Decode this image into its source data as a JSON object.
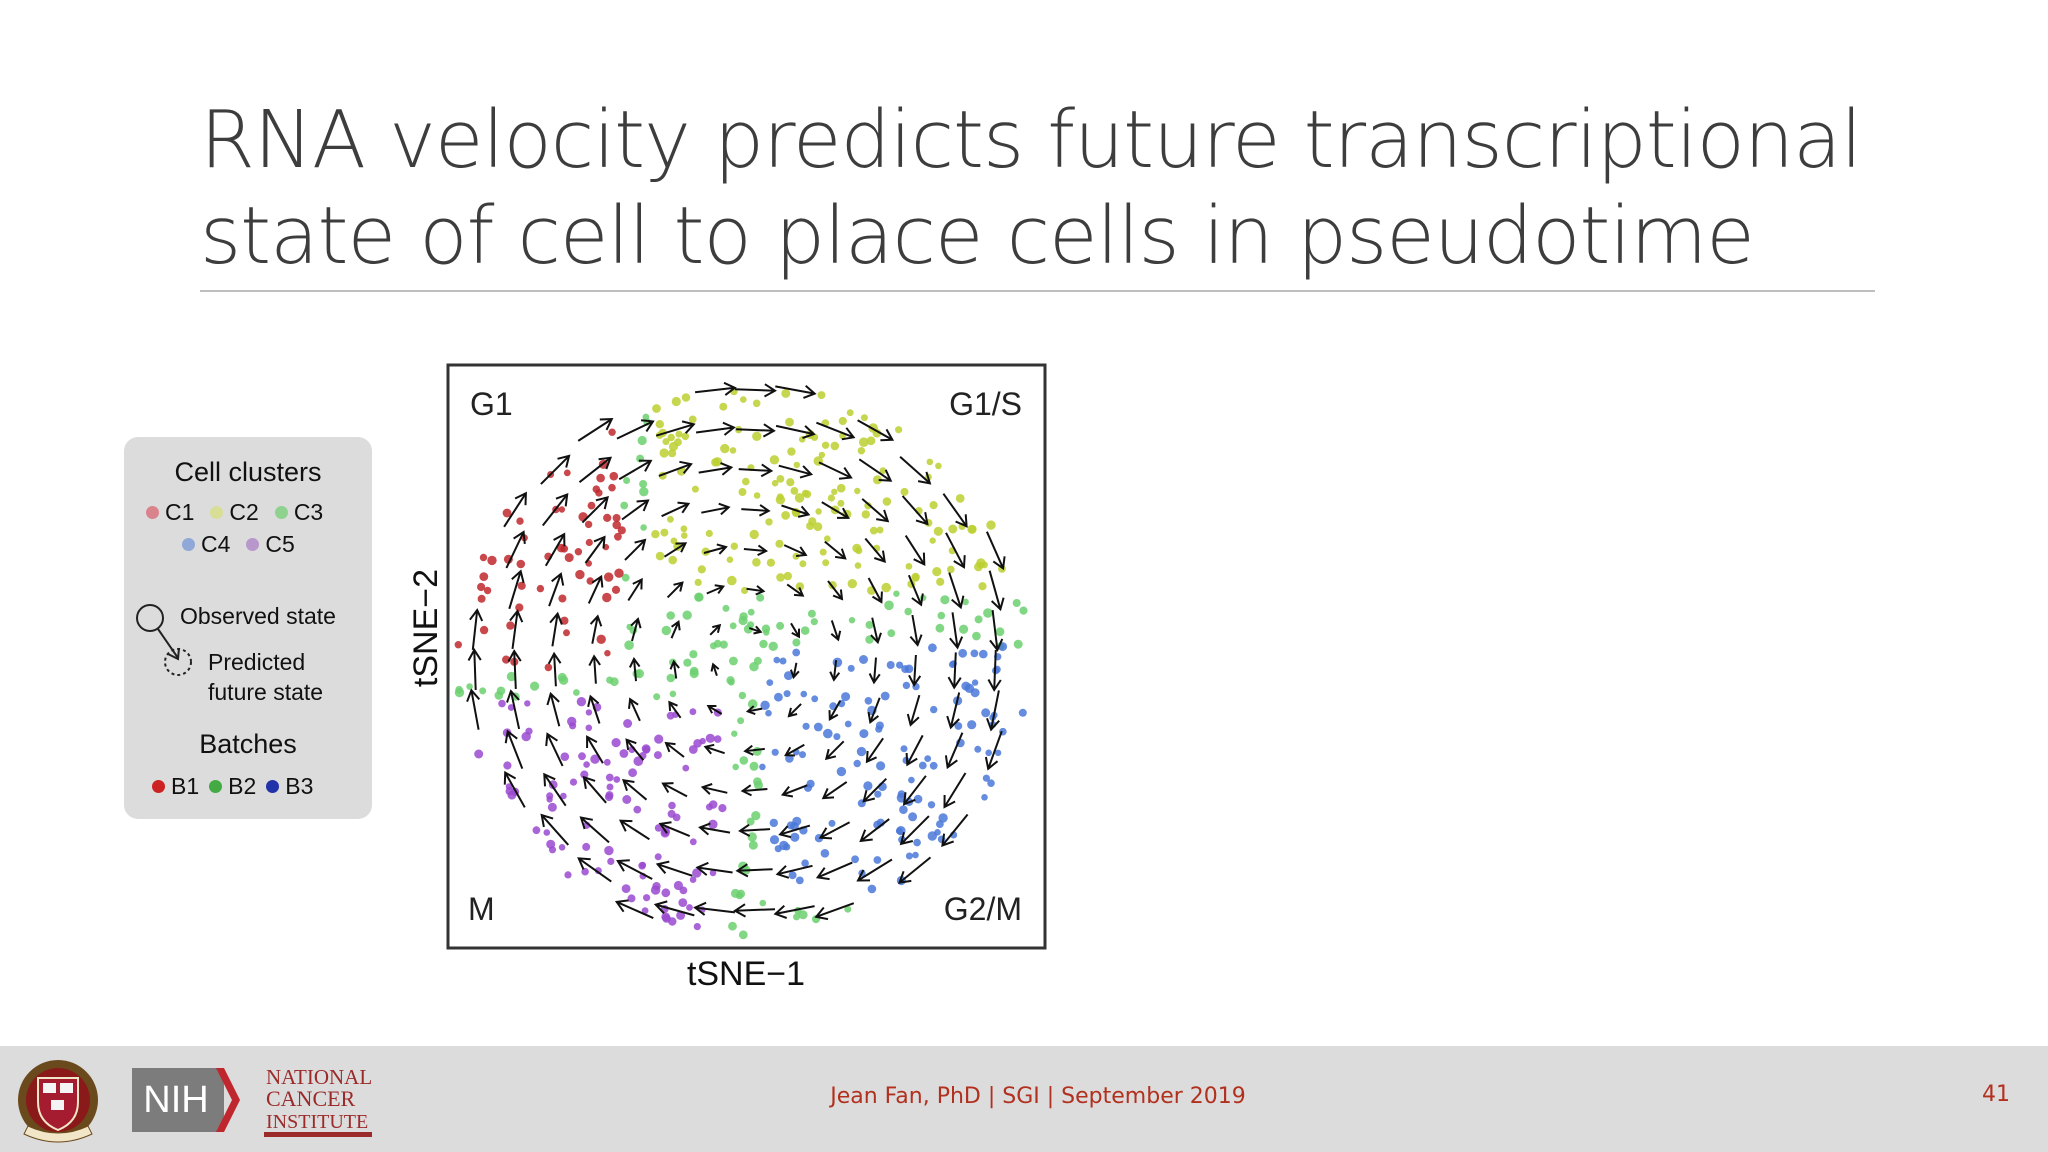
{
  "slide": {
    "title_line1": "RNA velocity predicts future transcriptional",
    "title_line2": "state of cell to place cells in pseudotime",
    "footer_text": "Jean Fan, PhD | SGI | September 2019",
    "page_number": "41"
  },
  "logos": {
    "harvard": "harvard-shield-logo",
    "nih": "NIH",
    "nci_line1": "NATIONAL",
    "nci_line2": "CANCER",
    "nci_line3": "INSTITUTE"
  },
  "legend": {
    "clusters_title": "Cell clusters",
    "clusters": [
      {
        "label": "C1",
        "color": "#d9848c"
      },
      {
        "label": "C2",
        "color": "#d8de96"
      },
      {
        "label": "C3",
        "color": "#8fd28f"
      },
      {
        "label": "C4",
        "color": "#8fa8d8"
      },
      {
        "label": "C5",
        "color": "#b898cc"
      }
    ],
    "observed_label": "Observed state",
    "predicted_line1": "Predicted",
    "predicted_line2": "future state",
    "batches_title": "Batches",
    "batches": [
      {
        "label": "B1",
        "color": "#cc2222"
      },
      {
        "label": "B2",
        "color": "#44aa44"
      },
      {
        "label": "B3",
        "color": "#2233aa"
      }
    ]
  },
  "chart_data": {
    "type": "scatter",
    "xlabel": "tSNE−1",
    "ylabel": "tSNE−2",
    "corner_labels": {
      "top_left": "G1",
      "top_right": "G1/S",
      "bottom_left": "M",
      "bottom_right": "G2/M"
    },
    "series": [
      {
        "name": "C1",
        "color": "#c0282d"
      },
      {
        "name": "C2",
        "color": "#bcd030"
      },
      {
        "name": "C3",
        "color": "#6cd070"
      },
      {
        "name": "C4",
        "color": "#4a78d8"
      },
      {
        "name": "C5",
        "color": "#9a4ad0"
      }
    ],
    "arrows": "velocity field flowing clockwise: G1 → G1/S → G2/M → M → G1"
  }
}
